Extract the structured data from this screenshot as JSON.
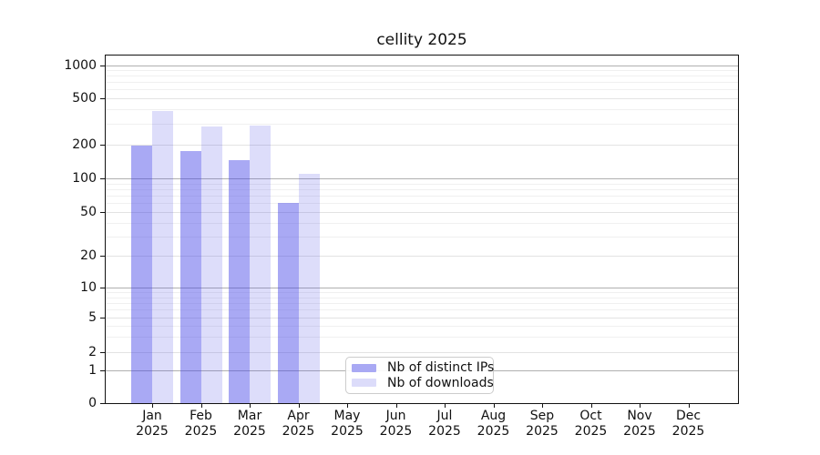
{
  "title": "cellity 2025",
  "chart_data": {
    "type": "bar",
    "title": "cellity 2025",
    "categories": [
      "Jan 2025",
      "Feb 2025",
      "Mar 2025",
      "Apr 2025",
      "May 2025",
      "Jun 2025",
      "Jul 2025",
      "Aug 2025",
      "Sep 2025",
      "Oct 2025",
      "Nov 2025",
      "Dec 2025"
    ],
    "series": [
      {
        "name": "Nb of distinct IPs",
        "color": "#a9a9f4",
        "fill": "rgba(60,60,229,0.44)",
        "values": [
          195,
          175,
          145,
          60,
          null,
          null,
          null,
          null,
          null,
          null,
          null,
          null
        ]
      },
      {
        "name": "Nb of downloads",
        "color": "#dcdcfa",
        "fill": "rgba(60,60,229,0.175)",
        "values": [
          390,
          285,
          290,
          110,
          null,
          null,
          null,
          null,
          null,
          null,
          null,
          null
        ]
      }
    ],
    "y_axis": {
      "scale": "symlog",
      "ticks": [
        0,
        1,
        2,
        5,
        10,
        20,
        50,
        100,
        200,
        500,
        1000
      ],
      "range": [
        0,
        1200
      ]
    },
    "grid": true,
    "legend_position": "lower center",
    "colors": {
      "grid_power10": "#b0b0b0",
      "grid_labeled": "#e3e3e3",
      "grid_minor": "#f0f0f0",
      "spine": "#111111",
      "text": "#111111"
    }
  }
}
